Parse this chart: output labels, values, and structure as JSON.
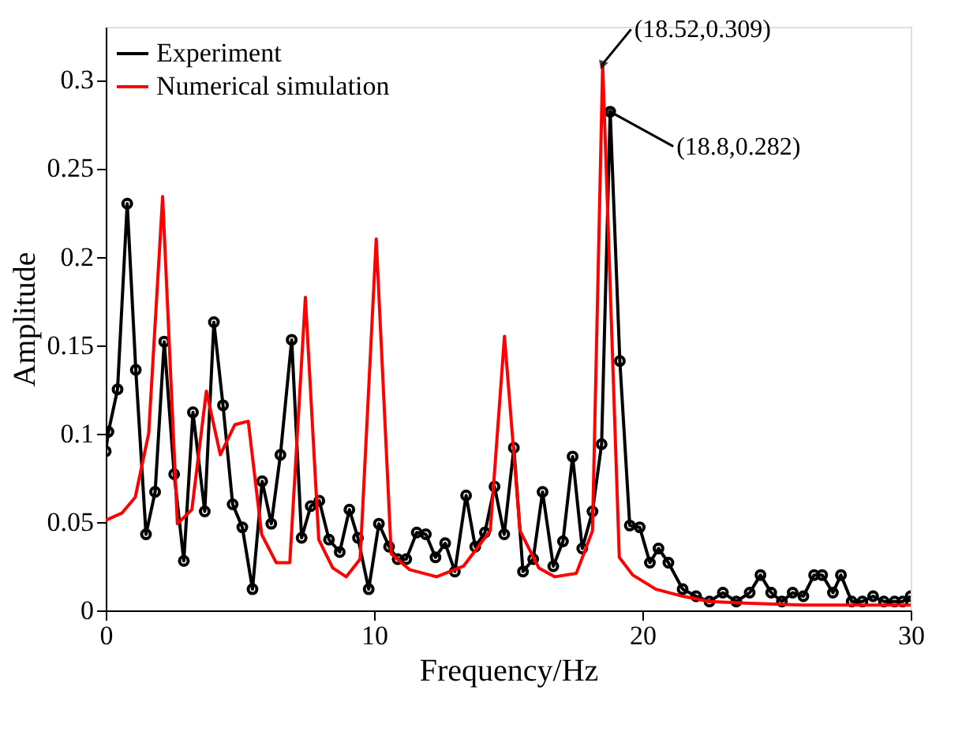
{
  "chart_data": {
    "type": "line",
    "xlabel": "Frequency/Hz",
    "ylabel": "Amplitude",
    "xlim": [
      0,
      30
    ],
    "ylim": [
      0,
      0.33
    ],
    "xticks": [
      0,
      10,
      20,
      30
    ],
    "yticks": [
      0,
      0.05,
      0.1,
      0.15,
      0.2,
      0.25,
      0.3
    ],
    "grid": false,
    "legend": "top left",
    "series": [
      {
        "name": "Experiment",
        "color": "#000000",
        "marker": "circle",
        "x": [
          0,
          0.1,
          0.44,
          0.8,
          1.12,
          1.5,
          1.84,
          2.18,
          2.55,
          2.91,
          3.25,
          3.69,
          4.03,
          4.37,
          4.73,
          5.09,
          5.47,
          5.83,
          6.17,
          6.51,
          6.93,
          7.3,
          7.64,
          7.96,
          8.32,
          8.72,
          9.08,
          9.4,
          9.8,
          10.18,
          10.56,
          10.88,
          11.2,
          11.59,
          11.93,
          12.29,
          12.65,
          13.01,
          13.43,
          13.77,
          14.13,
          14.49,
          14.85,
          15.21,
          15.55,
          15.93,
          16.28,
          16.68,
          17.04,
          17.4,
          17.76,
          18.14,
          18.48,
          18.8,
          19.16,
          19.53,
          19.9,
          20.28,
          20.6,
          20.97,
          21.5,
          22,
          22.5,
          23,
          23.5,
          24,
          24.4,
          24.8,
          25.2,
          25.6,
          26,
          26.4,
          26.7,
          27.1,
          27.4,
          27.8,
          28.2,
          28.6,
          29,
          29.4,
          29.7,
          30
        ],
        "values": [
          0.09,
          0.101,
          0.125,
          0.23,
          0.136,
          0.043,
          0.067,
          0.152,
          0.077,
          0.028,
          0.112,
          0.056,
          0.163,
          0.116,
          0.06,
          0.047,
          0.012,
          0.073,
          0.049,
          0.088,
          0.153,
          0.041,
          0.059,
          0.062,
          0.04,
          0.033,
          0.057,
          0.041,
          0.012,
          0.049,
          0.036,
          0.029,
          0.029,
          0.044,
          0.043,
          0.03,
          0.038,
          0.022,
          0.065,
          0.036,
          0.044,
          0.07,
          0.043,
          0.092,
          0.022,
          0.029,
          0.067,
          0.025,
          0.039,
          0.087,
          0.035,
          0.056,
          0.094,
          0.282,
          0.141,
          0.048,
          0.047,
          0.027,
          0.035,
          0.027,
          0.012,
          0.008,
          0.005,
          0.01,
          0.005,
          0.01,
          0.02,
          0.01,
          0.005,
          0.01,
          0.008,
          0.02,
          0.02,
          0.01,
          0.02,
          0.005,
          0.005,
          0.008,
          0.005,
          0.005,
          0.005,
          0.008
        ]
      },
      {
        "name": "Numerical simulation",
        "color": "#ff0000",
        "marker": "none",
        "x": [
          0,
          0.6,
          1.1,
          1.6,
          2.12,
          2.67,
          3.21,
          3.75,
          4.27,
          4.81,
          5.31,
          5.81,
          6.35,
          6.86,
          7.44,
          7.94,
          8.46,
          8.96,
          9.48,
          10.08,
          10.64,
          11.33,
          12.33,
          13.33,
          14.33,
          14.86,
          15.44,
          16.14,
          16.74,
          17.54,
          18.14,
          18.52,
          19.14,
          19.64,
          20.5,
          21.5,
          22.5,
          24,
          26,
          28,
          30
        ],
        "values": [
          0.051,
          0.055,
          0.064,
          0.1,
          0.234,
          0.049,
          0.057,
          0.124,
          0.088,
          0.105,
          0.107,
          0.043,
          0.027,
          0.027,
          0.177,
          0.04,
          0.024,
          0.019,
          0.029,
          0.21,
          0.032,
          0.023,
          0.019,
          0.025,
          0.045,
          0.155,
          0.045,
          0.024,
          0.019,
          0.021,
          0.045,
          0.309,
          0.03,
          0.02,
          0.012,
          0.008,
          0.005,
          0.004,
          0.003,
          0.003,
          0.003
        ]
      }
    ],
    "annotations": [
      {
        "text": "(18.52,0.309)",
        "x": 18.52,
        "y": 0.309
      },
      {
        "text": "(18.8,0.282)",
        "x": 18.8,
        "y": 0.282
      }
    ]
  }
}
